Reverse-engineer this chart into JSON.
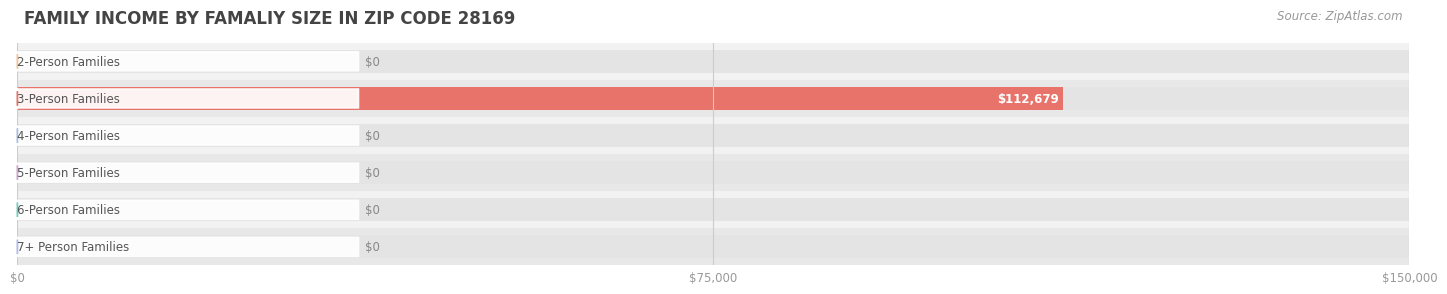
{
  "title": "FAMILY INCOME BY FAMALIY SIZE IN ZIP CODE 28169",
  "source": "Source: ZipAtlas.com",
  "categories": [
    "2-Person Families",
    "3-Person Families",
    "4-Person Families",
    "5-Person Families",
    "6-Person Families",
    "7+ Person Families"
  ],
  "values": [
    0,
    112679,
    0,
    0,
    0,
    0
  ],
  "bar_colors": [
    "#f5c496",
    "#e8736a",
    "#a8bfdd",
    "#cfa8cc",
    "#6ecfc0",
    "#b0bce8"
  ],
  "row_bg_colors": [
    "#f2f2f2",
    "#e8e8e8"
  ],
  "xlim": [
    0,
    150000
  ],
  "xticks": [
    0,
    75000,
    150000
  ],
  "xtick_labels": [
    "$0",
    "$75,000",
    "$150,000"
  ],
  "title_fontsize": 12,
  "label_fontsize": 8.5,
  "value_fontsize": 8.5,
  "source_fontsize": 8.5,
  "bar_height": 0.62,
  "fig_bg_color": "#ffffff",
  "title_color": "#444444",
  "source_color": "#999999",
  "tick_color": "#999999",
  "value_label_color_inside": "#ffffff",
  "value_label_color_outside": "#888888",
  "pill_bg_color": "#ffffff",
  "label_text_color": "#555555",
  "grid_color": "#cccccc",
  "bar_bg_color": "#e4e4e4"
}
